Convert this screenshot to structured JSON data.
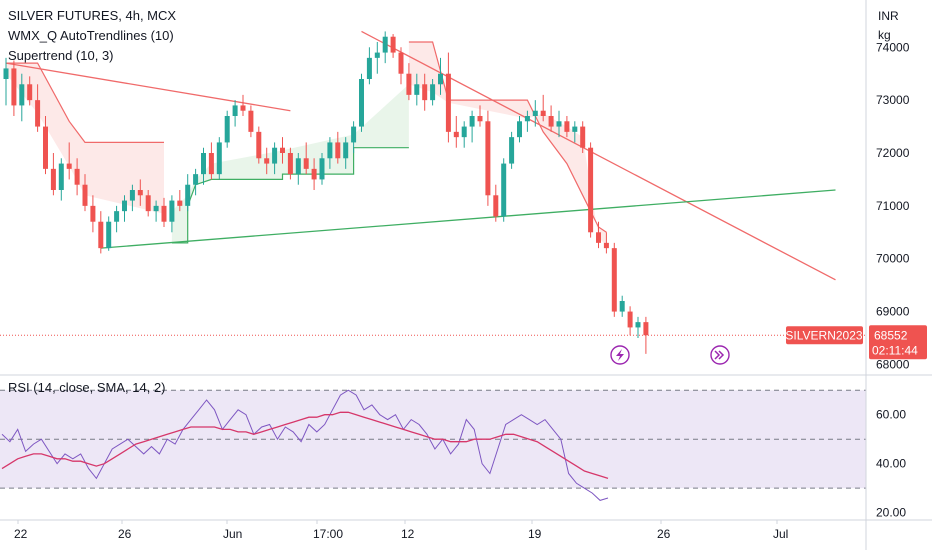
{
  "header": {
    "symbol": "SILVER FUTURES, 4h, MCX",
    "indicator_1": "WMX_Q AutoTrendlines (10)",
    "indicator_2": "Supertrend (10, 3)",
    "currency": "INR",
    "unit": "kg"
  },
  "price_tag": {
    "ticker": "SILVERN2023",
    "price": "68552",
    "countdown": "02:11:44"
  },
  "rsi_legend": "RSI (14, close, SMA, 14, 2)",
  "icons": [
    "lightning-icon",
    "forward-icon"
  ],
  "colors": {
    "up": "#26a69a",
    "down": "#ef5350",
    "trend_down": "#f06a6a",
    "trend_up": "#3fae63",
    "rsi": "#7e57c2",
    "rsi_ma": "#d6376a",
    "rsi_band": "#ede7f6"
  },
  "chart_data": [
    {
      "type": "candlestick",
      "title": "SILVER FUTURES, 4h, MCX",
      "ylim": [
        67800,
        74800
      ],
      "yticks": [
        68000,
        69000,
        70000,
        71000,
        72000,
        73000,
        74000
      ],
      "xticks": [
        "22",
        "26",
        "Jun",
        "17:00",
        "12",
        "19",
        "26",
        "Jul"
      ],
      "last_price": 68552,
      "candles": [
        {
          "o": 73400,
          "h": 73800,
          "l": 72900,
          "c": 73600
        },
        {
          "o": 73600,
          "h": 73750,
          "l": 72700,
          "c": 72900
        },
        {
          "o": 72900,
          "h": 73500,
          "l": 72600,
          "c": 73300
        },
        {
          "o": 73300,
          "h": 73450,
          "l": 72900,
          "c": 73000
        },
        {
          "o": 73000,
          "h": 73300,
          "l": 72400,
          "c": 72500
        },
        {
          "o": 72500,
          "h": 72700,
          "l": 71600,
          "c": 71700
        },
        {
          "o": 71700,
          "h": 72000,
          "l": 71200,
          "c": 71300
        },
        {
          "o": 71300,
          "h": 71900,
          "l": 71100,
          "c": 71800
        },
        {
          "o": 71800,
          "h": 72200,
          "l": 71500,
          "c": 71700
        },
        {
          "o": 71700,
          "h": 71900,
          "l": 71200,
          "c": 71400
        },
        {
          "o": 71400,
          "h": 71600,
          "l": 70900,
          "c": 71000
        },
        {
          "o": 71000,
          "h": 71200,
          "l": 70500,
          "c": 70700
        },
        {
          "o": 70700,
          "h": 70900,
          "l": 70100,
          "c": 70200
        },
        {
          "o": 70200,
          "h": 70800,
          "l": 70150,
          "c": 70700
        },
        {
          "o": 70700,
          "h": 71000,
          "l": 70500,
          "c": 70900
        },
        {
          "o": 70900,
          "h": 71200,
          "l": 70700,
          "c": 71100
        },
        {
          "o": 71100,
          "h": 71400,
          "l": 70900,
          "c": 71300
        },
        {
          "o": 71300,
          "h": 71500,
          "l": 71000,
          "c": 71200
        },
        {
          "o": 71200,
          "h": 71300,
          "l": 70800,
          "c": 70900
        },
        {
          "o": 70900,
          "h": 71100,
          "l": 70700,
          "c": 71000
        },
        {
          "o": 71000,
          "h": 71150,
          "l": 70600,
          "c": 70700
        },
        {
          "o": 70700,
          "h": 71200,
          "l": 70500,
          "c": 71100
        },
        {
          "o": 71100,
          "h": 71300,
          "l": 70900,
          "c": 71000
        },
        {
          "o": 71000,
          "h": 71600,
          "l": 70900,
          "c": 71400
        },
        {
          "o": 71400,
          "h": 71700,
          "l": 71200,
          "c": 71600
        },
        {
          "o": 71600,
          "h": 72100,
          "l": 71400,
          "c": 72000
        },
        {
          "o": 72000,
          "h": 72200,
          "l": 71500,
          "c": 71600
        },
        {
          "o": 71600,
          "h": 72300,
          "l": 71500,
          "c": 72200
        },
        {
          "o": 72200,
          "h": 72800,
          "l": 72100,
          "c": 72700
        },
        {
          "o": 72700,
          "h": 73000,
          "l": 72500,
          "c": 72900
        },
        {
          "o": 72900,
          "h": 73100,
          "l": 72700,
          "c": 72800
        },
        {
          "o": 72800,
          "h": 72900,
          "l": 72300,
          "c": 72400
        },
        {
          "o": 72400,
          "h": 72500,
          "l": 71800,
          "c": 71900
        },
        {
          "o": 71900,
          "h": 72100,
          "l": 71600,
          "c": 71800
        },
        {
          "o": 71800,
          "h": 72200,
          "l": 71600,
          "c": 72100
        },
        {
          "o": 72100,
          "h": 72300,
          "l": 71800,
          "c": 72000
        },
        {
          "o": 72000,
          "h": 72100,
          "l": 71500,
          "c": 71600
        },
        {
          "o": 71600,
          "h": 72000,
          "l": 71400,
          "c": 71900
        },
        {
          "o": 71900,
          "h": 72200,
          "l": 71600,
          "c": 71700
        },
        {
          "o": 71700,
          "h": 71900,
          "l": 71300,
          "c": 71500
        },
        {
          "o": 71500,
          "h": 72000,
          "l": 71400,
          "c": 71900
        },
        {
          "o": 71900,
          "h": 72300,
          "l": 71700,
          "c": 72200
        },
        {
          "o": 72200,
          "h": 72400,
          "l": 71800,
          "c": 71900
        },
        {
          "o": 71900,
          "h": 72300,
          "l": 71700,
          "c": 72200
        },
        {
          "o": 72200,
          "h": 72600,
          "l": 72000,
          "c": 72500
        },
        {
          "o": 72500,
          "h": 73500,
          "l": 72400,
          "c": 73400
        },
        {
          "o": 73400,
          "h": 74000,
          "l": 73300,
          "c": 73800
        },
        {
          "o": 73800,
          "h": 74100,
          "l": 73500,
          "c": 73900
        },
        {
          "o": 73900,
          "h": 74300,
          "l": 73700,
          "c": 74200
        },
        {
          "o": 74200,
          "h": 74250,
          "l": 73800,
          "c": 73900
        },
        {
          "o": 73900,
          "h": 74000,
          "l": 73300,
          "c": 73500
        },
        {
          "o": 73500,
          "h": 73700,
          "l": 73000,
          "c": 73100
        },
        {
          "o": 73100,
          "h": 73500,
          "l": 72900,
          "c": 73300
        },
        {
          "o": 73300,
          "h": 73500,
          "l": 72800,
          "c": 73000
        },
        {
          "o": 73000,
          "h": 73400,
          "l": 72900,
          "c": 73300
        },
        {
          "o": 73300,
          "h": 73800,
          "l": 73100,
          "c": 73500
        },
        {
          "o": 73500,
          "h": 73900,
          "l": 72200,
          "c": 72400
        },
        {
          "o": 72400,
          "h": 72700,
          "l": 72100,
          "c": 72300
        },
        {
          "o": 72300,
          "h": 72600,
          "l": 72100,
          "c": 72500
        },
        {
          "o": 72500,
          "h": 72800,
          "l": 72200,
          "c": 72700
        },
        {
          "o": 72700,
          "h": 72900,
          "l": 72500,
          "c": 72600
        },
        {
          "o": 72600,
          "h": 72800,
          "l": 71000,
          "c": 71200
        },
        {
          "o": 71200,
          "h": 71400,
          "l": 70700,
          "c": 70800
        },
        {
          "o": 70800,
          "h": 71900,
          "l": 70700,
          "c": 71800
        },
        {
          "o": 71800,
          "h": 72400,
          "l": 71700,
          "c": 72300
        },
        {
          "o": 72300,
          "h": 72700,
          "l": 72200,
          "c": 72600
        },
        {
          "o": 72600,
          "h": 72800,
          "l": 72400,
          "c": 72700
        },
        {
          "o": 72700,
          "h": 73000,
          "l": 72500,
          "c": 72800
        },
        {
          "o": 72800,
          "h": 73100,
          "l": 72600,
          "c": 72700
        },
        {
          "o": 72700,
          "h": 72900,
          "l": 72400,
          "c": 72500
        },
        {
          "o": 72500,
          "h": 72800,
          "l": 72300,
          "c": 72600
        },
        {
          "o": 72600,
          "h": 72700,
          "l": 72300,
          "c": 72400
        },
        {
          "o": 72400,
          "h": 72600,
          "l": 72200,
          "c": 72500
        },
        {
          "o": 72500,
          "h": 72600,
          "l": 72000,
          "c": 72100
        },
        {
          "o": 72100,
          "h": 72200,
          "l": 70400,
          "c": 70500
        },
        {
          "o": 70500,
          "h": 70700,
          "l": 70200,
          "c": 70300
        },
        {
          "o": 70300,
          "h": 70500,
          "l": 70100,
          "c": 70200
        },
        {
          "o": 70200,
          "h": 70300,
          "l": 68900,
          "c": 69000
        },
        {
          "o": 69000,
          "h": 69300,
          "l": 68900,
          "c": 69200
        },
        {
          "o": 69000,
          "h": 69100,
          "l": 68550,
          "c": 68700
        },
        {
          "o": 68700,
          "h": 68900,
          "l": 68500,
          "c": 68800
        },
        {
          "o": 68800,
          "h": 68900,
          "l": 68200,
          "c": 68552
        }
      ],
      "supertrend": {
        "down_1": [
          [
            0,
            73700
          ],
          [
            4,
            73700
          ],
          [
            8,
            72600
          ],
          [
            10,
            72200
          ],
          [
            20,
            72200
          ]
        ],
        "up_1": [
          [
            21,
            70300
          ],
          [
            23,
            70300
          ],
          [
            23,
            71000
          ],
          [
            24,
            71400
          ],
          [
            26,
            71500
          ],
          [
            35,
            71500
          ],
          [
            35,
            71600
          ],
          [
            44,
            71600
          ],
          [
            44,
            72100
          ],
          [
            51,
            72100
          ]
        ],
        "down_2": [
          [
            51,
            74100
          ],
          [
            54,
            74100
          ],
          [
            56,
            73000
          ],
          [
            66,
            73000
          ],
          [
            68,
            72400
          ],
          [
            71,
            71800
          ],
          [
            73,
            71200
          ],
          [
            75,
            70600
          ],
          [
            76,
            70500
          ]
        ]
      },
      "trendlines": [
        {
          "from": [
            0,
            73700
          ],
          "to": [
            36,
            72800
          ],
          "color": "down"
        },
        {
          "from": [
            45,
            74300
          ],
          "to": [
            105,
            69600
          ],
          "color": "down"
        },
        {
          "from": [
            12,
            70200
          ],
          "to": [
            105,
            71300
          ],
          "color": "up"
        }
      ]
    },
    {
      "type": "line",
      "title": "RSI (14, close, SMA, 14, 2)",
      "ylim": [
        17,
        75
      ],
      "yticks": [
        20,
        40,
        60
      ],
      "levels": [
        70,
        50,
        30
      ],
      "series": [
        {
          "values": [
            52,
            49,
            54,
            45,
            48,
            50,
            45,
            40,
            44,
            42,
            44,
            38,
            34,
            40,
            46,
            48,
            50,
            47,
            44,
            47,
            44,
            50,
            48,
            54,
            58,
            62,
            66,
            62,
            54,
            58,
            62,
            60,
            52,
            55,
            56,
            50,
            55,
            53,
            49,
            56,
            53,
            56,
            62,
            68,
            70,
            68,
            62,
            64,
            60,
            58,
            60,
            54,
            58,
            56,
            52,
            46,
            50,
            44,
            48,
            58,
            54,
            40,
            36,
            46,
            56,
            58,
            60,
            58,
            56,
            58,
            54,
            50,
            36,
            32,
            30,
            28,
            25,
            26
          ]
        },
        {
          "values": [
            38,
            40,
            42,
            43,
            44,
            44,
            43,
            42,
            42,
            41,
            41,
            40,
            39,
            40,
            42,
            44,
            46,
            48,
            49,
            50,
            51,
            52,
            53,
            54,
            55,
            55,
            55,
            55,
            54,
            54,
            53,
            53,
            52,
            53,
            54,
            55,
            56,
            57,
            58,
            59,
            59,
            60,
            60,
            61,
            61,
            60,
            59,
            58,
            57,
            56,
            55,
            54,
            53,
            52,
            51,
            50,
            50,
            49,
            49,
            49,
            50,
            50,
            50,
            51,
            52,
            52,
            51,
            50,
            49,
            47,
            45,
            43,
            41,
            39,
            37,
            36,
            35,
            34
          ]
        }
      ]
    }
  ]
}
